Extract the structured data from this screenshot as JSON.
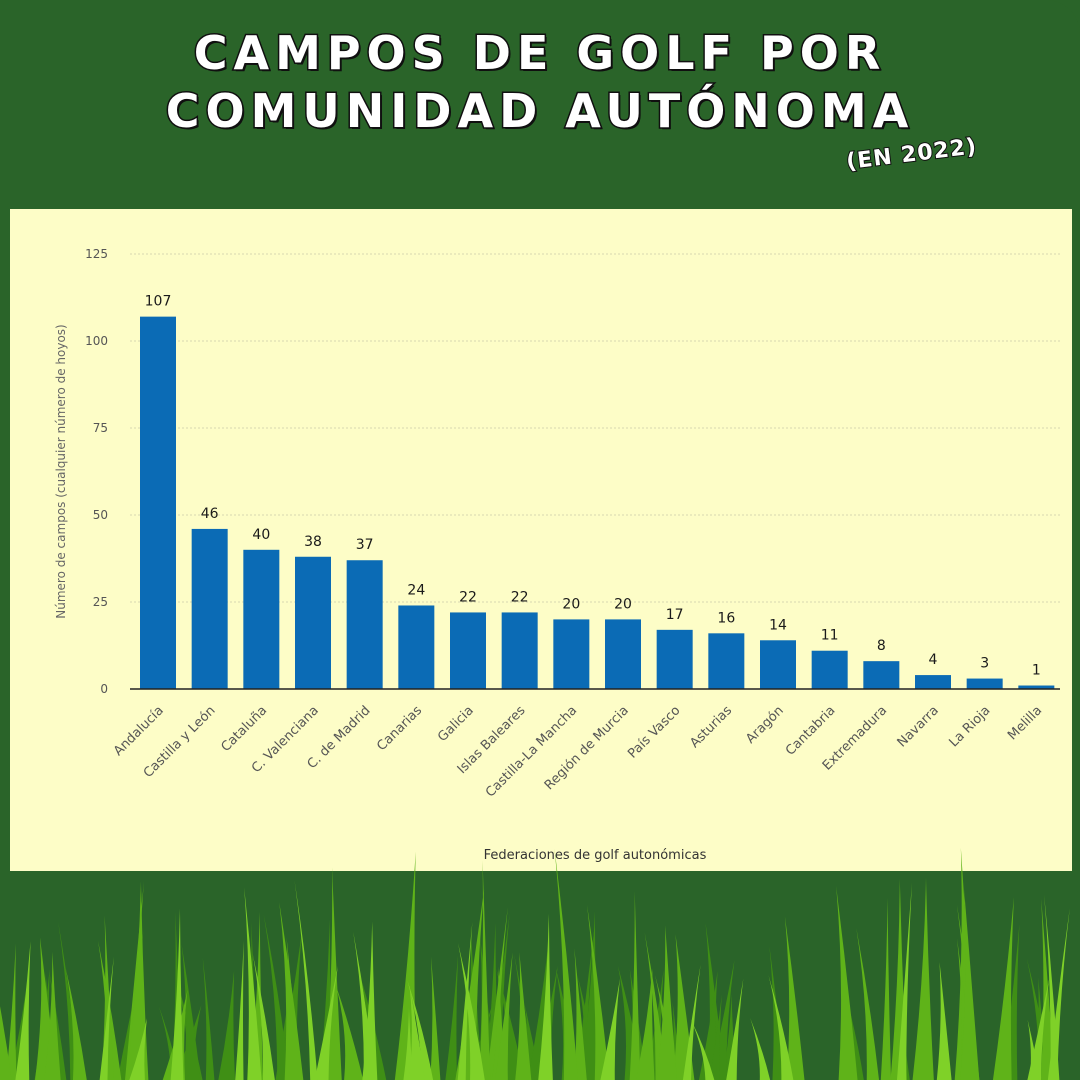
{
  "header": {
    "title_line1": "CAMPOS DE GOLF POR",
    "title_line2": "COMUNIDAD AUTÓNOMA",
    "subtitle": "(EN 2022)"
  },
  "colors": {
    "background": "#2a6429",
    "panel": "#fdfdc7",
    "bar": "#0b6bb5",
    "grass_light": "#6fc41f",
    "grass_dark": "#3f8f15"
  },
  "chart_data": {
    "type": "bar",
    "title": "",
    "xlabel": "Federaciones de golf autonómicas",
    "ylabel": "Número de campos (cualquier número de hoyos)",
    "ylim": [
      0,
      125
    ],
    "yticks": [
      0,
      25,
      50,
      75,
      100,
      125
    ],
    "grid": true,
    "legend": "none",
    "categories": [
      "Andalucía",
      "Castilla y León",
      "Cataluña",
      "C. Valenciana",
      "C. de Madrid",
      "Canarias",
      "Galicia",
      "Islas Baleares",
      "Castilla-La Mancha",
      "Región de Murcia",
      "País Vasco",
      "Asturias",
      "Aragón",
      "Cantabria",
      "Extremadura",
      "Navarra",
      "La Rioja",
      "Melilla"
    ],
    "values": [
      107,
      46,
      40,
      38,
      37,
      24,
      22,
      22,
      20,
      20,
      17,
      16,
      14,
      11,
      8,
      4,
      3,
      1
    ]
  }
}
